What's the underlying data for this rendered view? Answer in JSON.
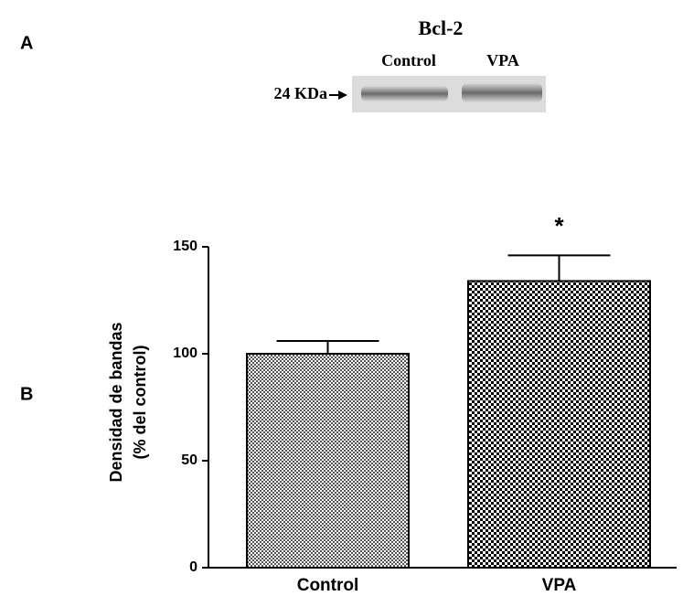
{
  "panels": {
    "a": {
      "label": "A",
      "title": "Bcl-2",
      "lanes": [
        "Control",
        "VPA"
      ],
      "marker": "24 KDa"
    },
    "b": {
      "label": "B"
    }
  },
  "chart_data": {
    "type": "bar",
    "ylabel": [
      "Densidad de bandas",
      "(% del control)"
    ],
    "categories": [
      "Control",
      "VPA"
    ],
    "values": [
      100,
      134
    ],
    "errors": [
      6,
      12
    ],
    "colors": [
      "#555555",
      "#000000"
    ],
    "annotation": "*",
    "ylim": [
      0,
      150
    ],
    "yticks": [
      0,
      50,
      100,
      150
    ]
  }
}
